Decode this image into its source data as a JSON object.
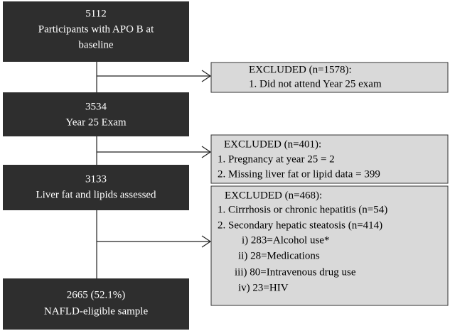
{
  "steps": [
    {
      "lines": [
        "5112",
        "Participants with APO B at",
        "baseline"
      ]
    },
    {
      "lines": [
        "3534",
        "Year 25 Exam"
      ]
    },
    {
      "lines": [
        "3133",
        "Liver fat and lipids assessed"
      ]
    },
    {
      "lines": [
        "2665 (52.1%)",
        "NAFLD-eligible sample"
      ]
    }
  ],
  "excluded": [
    {
      "lines": [
        "EXCLUDED (n=1578):",
        "1. Did not attend Year 25 exam"
      ]
    },
    {
      "lines": [
        "EXCLUDED (n=401):",
        "1. Pregnancy at year 25 = 2",
        "2. Missing liver fat or lipid data = 399"
      ]
    },
    {
      "lines": [
        "EXCLUDED (n=468):",
        "1. Cirrrhosis or chronic hepatitis (n=54)",
        "2. Secondary hepatic steatosis (n=414)",
        "i) 283=Alcohol use*",
        "ii) 28=Medications",
        "iii) 80=Intravenous drug use",
        "iv) 23=HIV"
      ]
    }
  ]
}
